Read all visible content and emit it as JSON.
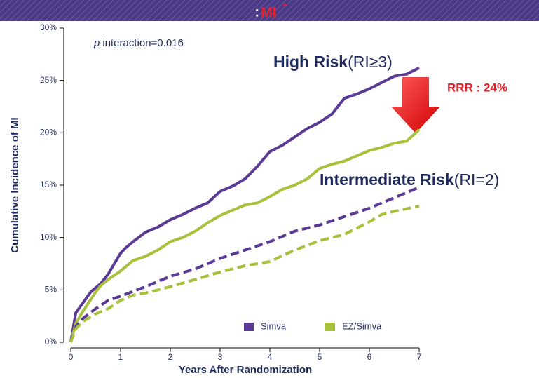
{
  "chart_data": {
    "type": "line",
    "title_prefix": ":",
    "title": "MI",
    "title_marker": "*",
    "xlabel": "Years After Randomization",
    "ylabel": "Cumulative Incidence of MI",
    "xlim": [
      0,
      7
    ],
    "xticks": [
      0,
      1,
      2,
      3,
      4,
      5,
      6,
      7
    ],
    "ylim": [
      0,
      30
    ],
    "yticks": [
      {
        "value": 0,
        "label": "0%"
      },
      {
        "value": 5,
        "label": "5%"
      },
      {
        "value": 10,
        "label": "10%"
      },
      {
        "value": 15,
        "label": "15%"
      },
      {
        "value": 20,
        "label": "20%"
      },
      {
        "value": 25,
        "label": "25%"
      },
      {
        "value": 30,
        "label": "30%"
      }
    ],
    "series": [
      {
        "name": "Simva",
        "color": "#5b3a96",
        "dashed": false,
        "x": [
          0,
          0.1,
          0.25,
          0.4,
          0.6,
          0.75,
          1,
          1.1,
          1.25,
          1.5,
          1.75,
          2,
          2.25,
          2.5,
          2.75,
          3,
          3.25,
          3.5,
          3.75,
          4,
          4.25,
          4.5,
          4.75,
          5,
          5.25,
          5.5,
          5.75,
          6,
          6.25,
          6.5,
          6.75,
          7
        ],
        "values": [
          0,
          2.8,
          3.8,
          4.8,
          5.6,
          6.5,
          8.5,
          9,
          9.6,
          10.5,
          11,
          11.7,
          12.2,
          12.8,
          13.3,
          14.4,
          14.9,
          15.6,
          16.8,
          18.2,
          18.8,
          19.6,
          20.4,
          21,
          21.8,
          23.3,
          23.7,
          24.2,
          24.8,
          25.4,
          25.6,
          26.2
        ]
      },
      {
        "name": "EZ/Simva",
        "color": "#a6c23a",
        "dashed": false,
        "x": [
          0,
          0.1,
          0.25,
          0.5,
          0.6,
          0.75,
          1,
          1.25,
          1.5,
          1.75,
          2,
          2.25,
          2.5,
          2.75,
          3,
          3.25,
          3.5,
          3.75,
          4,
          4.25,
          4.5,
          4.75,
          5,
          5.25,
          5.5,
          5.75,
          6,
          6.25,
          6.5,
          6.75,
          7
        ],
        "values": [
          0,
          1.8,
          3,
          4.8,
          5.4,
          6,
          6.8,
          7.8,
          8.2,
          8.8,
          9.6,
          10,
          10.6,
          11.4,
          12.1,
          12.6,
          13.1,
          13.3,
          13.9,
          14.6,
          15,
          15.6,
          16.6,
          17,
          17.3,
          17.8,
          18.3,
          18.6,
          19,
          19.2,
          20.3
        ]
      },
      {
        "name": "Simva",
        "color": "#5b3a96",
        "dashed": true,
        "x": [
          0,
          0.1,
          0.25,
          0.5,
          0.75,
          1,
          1.5,
          2,
          2.5,
          3,
          3.5,
          4,
          4.5,
          5,
          5.5,
          6,
          6.5,
          7
        ],
        "values": [
          0,
          1.5,
          2.3,
          3.2,
          4,
          4.4,
          5.3,
          6.3,
          7,
          8,
          8.8,
          9.6,
          10.6,
          11.2,
          12,
          12.8,
          13.8,
          14.8
        ]
      },
      {
        "name": "EZ/Simva",
        "color": "#a6c23a",
        "dashed": true,
        "x": [
          0,
          0.1,
          0.25,
          0.5,
          0.75,
          1,
          1.25,
          1.5,
          2,
          2.5,
          3,
          3.5,
          4,
          4.5,
          5,
          5.5,
          6,
          6.25,
          6.5,
          7
        ],
        "values": [
          0,
          1.3,
          2,
          2.7,
          3.2,
          4,
          4.5,
          4.7,
          5.3,
          6,
          6.7,
          7.3,
          7.7,
          8.8,
          9.7,
          10.3,
          11.5,
          12.2,
          12.5,
          13
        ]
      }
    ],
    "annotations": [
      {
        "italic": "p",
        "text": "interaction=0.016"
      },
      {
        "text": "High Risk",
        "detail": "(RI≥3)"
      },
      {
        "text": "Intermediate Risk",
        "detail": "(RI=2)"
      },
      {
        "text": "RRR : 24%"
      }
    ]
  }
}
